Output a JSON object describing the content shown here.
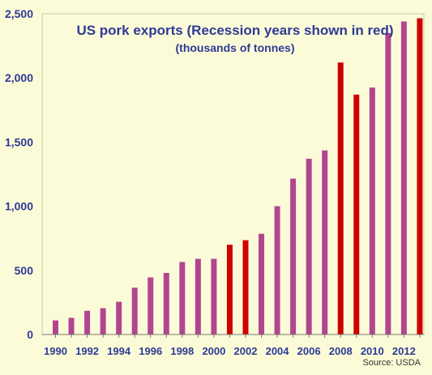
{
  "chart_data": {
    "type": "bar",
    "title": "US pork exports (Recession years shown in red)",
    "subtitle": "(thousands of tonnes)",
    "source": "Source: USDA",
    "categories": [
      "1990",
      "1991",
      "1992",
      "1993",
      "1994",
      "1995",
      "1996",
      "1997",
      "1998",
      "1999",
      "2000",
      "2001",
      "2002",
      "2003",
      "2004",
      "2005",
      "2006",
      "2007",
      "2008",
      "2009",
      "2010",
      "2011",
      "2012",
      "2013"
    ],
    "values": [
      110,
      130,
      185,
      205,
      255,
      365,
      445,
      480,
      565,
      590,
      590,
      700,
      735,
      785,
      1000,
      1215,
      1370,
      1435,
      2120,
      1870,
      1925,
      2350,
      2440,
      2465
    ],
    "recession": [
      false,
      false,
      false,
      false,
      false,
      false,
      false,
      false,
      false,
      false,
      false,
      true,
      true,
      false,
      false,
      false,
      false,
      false,
      true,
      true,
      false,
      false,
      false,
      true
    ],
    "x_tick_labels": [
      "1990",
      "1992",
      "1994",
      "1996",
      "1998",
      "2000",
      "2002",
      "2004",
      "2006",
      "2008",
      "2010",
      "2012"
    ],
    "y_ticks": [
      0,
      500,
      1000,
      1500,
      2000,
      2500
    ],
    "y_tick_labels": [
      "0",
      "500",
      "1,000",
      "1,500",
      "2,000",
      "2,500"
    ],
    "ylim": [
      0,
      2500
    ],
    "grid": false,
    "colors": {
      "normal": "#b2458f",
      "recession": "#d10000",
      "axis": "#2e3a96",
      "title": "#2e3a96"
    }
  }
}
